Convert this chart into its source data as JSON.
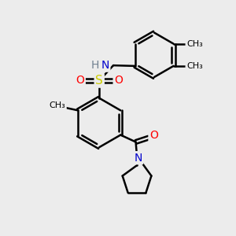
{
  "background_color": "#ececec",
  "atom_colors": {
    "C": "#000000",
    "H": "#708090",
    "N": "#0000cc",
    "O": "#ff0000",
    "S": "#cccc00"
  },
  "bond_color": "#000000",
  "bond_width": 1.8,
  "dbo": 0.07,
  "figsize": [
    3.0,
    3.0
  ],
  "dpi": 100,
  "xlim": [
    0,
    10
  ],
  "ylim": [
    0,
    10
  ]
}
